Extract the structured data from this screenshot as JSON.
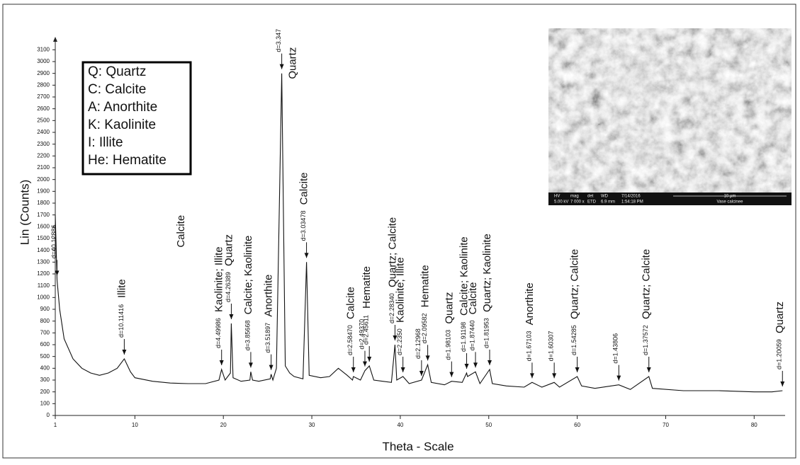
{
  "chart_data": {
    "type": "line",
    "color": "#111111",
    "x_label": "Theta - Scale",
    "y_label": "Lin (Counts)",
    "xlim": [
      1,
      83.5
    ],
    "xticks": [
      1,
      10,
      20,
      30,
      40,
      50,
      60,
      70,
      80
    ],
    "ylim": [
      0,
      3180
    ],
    "yticks": [
      0,
      100,
      200,
      300,
      400,
      500,
      600,
      700,
      800,
      900,
      1000,
      1100,
      1200,
      1300,
      1400,
      1500,
      1600,
      1700,
      1800,
      1900,
      2000,
      2100,
      2200,
      2300,
      2400,
      2500,
      2600,
      2700,
      2800,
      2900,
      3000,
      3100
    ],
    "x": [
      1,
      1.2,
      1.5,
      2,
      3,
      4,
      5,
      6,
      7,
      8,
      8.8,
      9.5,
      10,
      12,
      14,
      16,
      18,
      19.5,
      19.8,
      20.2,
      20.8,
      20.9,
      21.1,
      22,
      23,
      23.1,
      23.3,
      24,
      25.3,
      25.4,
      25.6,
      26,
      26.6,
      27,
      27.5,
      28,
      29,
      29.4,
      29.7,
      31,
      32,
      33,
      34,
      34.6,
      34.7,
      35.5,
      36,
      36.5,
      37,
      38,
      39,
      39.4,
      39.6,
      40.3,
      41,
      42.4,
      43.1,
      43.5,
      45,
      45.8,
      47,
      47.5,
      47.6,
      48.5,
      49,
      50.1,
      50.4,
      52,
      54,
      54.9,
      56,
      57.4,
      58,
      60,
      60.5,
      62,
      64.7,
      66,
      68.1,
      68.5,
      72,
      76,
      80,
      82,
      83.2
    ],
    "values": [
      1700,
      1150,
      900,
      650,
      480,
      400,
      360,
      340,
      360,
      400,
      480,
      370,
      320,
      290,
      275,
      270,
      270,
      300,
      390,
      300,
      360,
      780,
      320,
      290,
      300,
      370,
      300,
      290,
      310,
      350,
      300,
      400,
      2900,
      420,
      360,
      330,
      310,
      1300,
      340,
      320,
      330,
      400,
      340,
      300,
      330,
      300,
      380,
      420,
      300,
      290,
      280,
      600,
      300,
      330,
      270,
      300,
      430,
      280,
      260,
      290,
      280,
      360,
      330,
      370,
      270,
      390,
      270,
      250,
      240,
      280,
      240,
      280,
      240,
      330,
      250,
      230,
      260,
      220,
      330,
      230,
      210,
      210,
      200,
      200,
      210
    ],
    "annotations": [
      {
        "x": 1.2,
        "d": "d=40.12886"
      },
      {
        "x": 8.8,
        "d": "d=10.11416",
        "label": "Illite"
      },
      {
        "x": 15.5,
        "label": "Calcite"
      },
      {
        "x": 19.8,
        "d": "d=4.49986",
        "label": "Kaolinite; Illite"
      },
      {
        "x": 20.9,
        "d": "d=4.26389",
        "label": "Quartz"
      },
      {
        "x": 23.1,
        "d": "d=3.85668",
        "label": "Calcite; Kaolinite"
      },
      {
        "x": 25.4,
        "d": "d=3.51897",
        "label": "Anorthite"
      },
      {
        "x": 26.6,
        "d": "d=3.347",
        "label": "Quartz"
      },
      {
        "x": 29.4,
        "d": "d=3.03478",
        "label": "Calcite"
      },
      {
        "x": 34.7,
        "d": "d=2.58470",
        "label": "Calcite"
      },
      {
        "x": 36.0,
        "d": "d=2.49370"
      },
      {
        "x": 36.5,
        "d": "d=2.45611",
        "label": "Hematite"
      },
      {
        "x": 39.4,
        "d": "d=2.28340",
        "label": "Quartz; Calcite"
      },
      {
        "x": 40.3,
        "d": "d=2.2350",
        "label": "Kaolinite; Illite"
      },
      {
        "x": 42.4,
        "d": "d=2.12968"
      },
      {
        "x": 43.1,
        "d": "d=2.09582",
        "label": "Hematite"
      },
      {
        "x": 45.8,
        "d": "d=1.98103",
        "label": "Quartz"
      },
      {
        "x": 47.5,
        "d": "d=1.91198",
        "label": "Calcite; Kaolinite"
      },
      {
        "x": 48.5,
        "d": "d=1.87440",
        "label": "Calcite"
      },
      {
        "x": 50.1,
        "d": "d=1.81953",
        "label": "Quartz; Kaolinite"
      },
      {
        "x": 54.9,
        "d": "d=1.67103",
        "label": "Anorthite"
      },
      {
        "x": 57.4,
        "d": "d=1.60307"
      },
      {
        "x": 60.0,
        "d": "d=1.54285",
        "label": "Quartz; Calcite"
      },
      {
        "x": 64.7,
        "d": "d=1.43806"
      },
      {
        "x": 68.1,
        "d": "d=1.37572",
        "label": "Quartz; Calcite"
      },
      {
        "x": 83.2,
        "d": "d=1.20059",
        "label": "Quartz"
      }
    ],
    "legend_lines": [
      "Q: Quartz",
      "C: Calcite",
      "A: Anorthite",
      "K: Kaolinite",
      "I: Illite",
      "He: Hematite"
    ],
    "inset": {
      "row1": [
        "HV",
        "mag",
        "det",
        "WD",
        "7/14/2016",
        "10 µm"
      ],
      "row2": [
        "5.00 kV",
        "7 000 x",
        "ETD",
        "6.9 mm",
        "1:54:18 PM",
        "Vase calcinee"
      ]
    }
  }
}
